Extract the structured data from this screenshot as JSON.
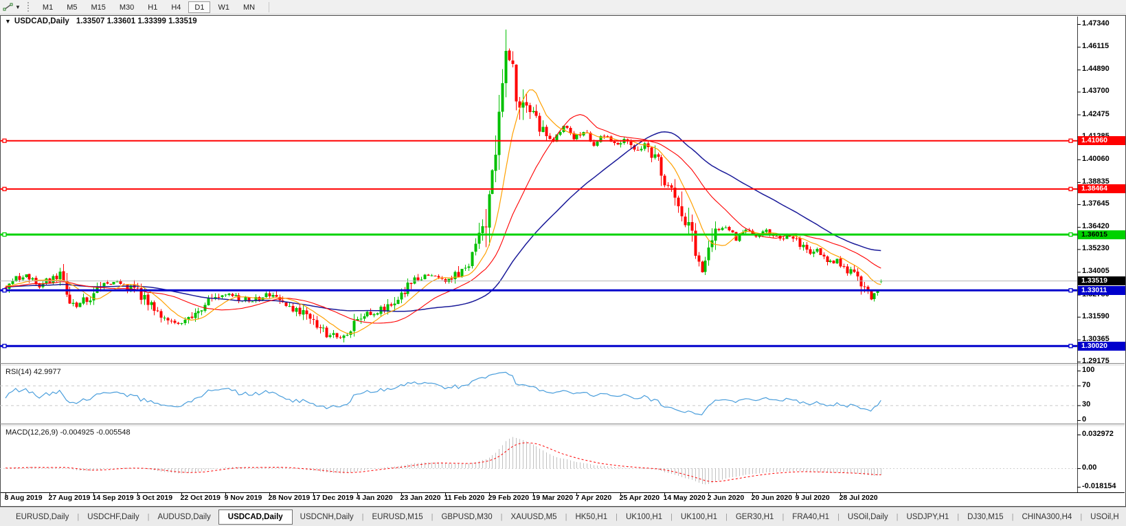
{
  "toolbar": {
    "timeframes": [
      "M1",
      "M5",
      "M15",
      "M30",
      "H1",
      "H4",
      "D1",
      "W1",
      "MN"
    ],
    "active_timeframe": "D1",
    "dropdown_caret": "▼"
  },
  "title": {
    "collapse_arrow": "▼",
    "symbol_period": "USDCAD,Daily",
    "ohlc": "1.33507 1.33601 1.33399 1.33519"
  },
  "price_axis": {
    "top": 1.4734,
    "bottom": 1.29175,
    "labels": [
      "1.47340",
      "1.46115",
      "1.44890",
      "1.43700",
      "1.42475",
      "1.41285",
      "1.40060",
      "1.38835",
      "1.37645",
      "1.36420",
      "1.35230",
      "1.34005",
      "1.32780",
      "1.31590",
      "1.30365",
      "1.29175"
    ]
  },
  "price_markers": [
    {
      "name": "resistance-1",
      "value": "1.41060",
      "price": 1.4106,
      "color": "#ff0000",
      "text_color": "#ffffff",
      "line_width": 2
    },
    {
      "name": "resistance-2",
      "value": "1.38464",
      "price": 1.38464,
      "color": "#ff0000",
      "text_color": "#ffffff",
      "line_width": 2
    },
    {
      "name": "pivot-green",
      "value": "1.36015",
      "price": 1.36015,
      "color": "#00d200",
      "text_color": "#000000",
      "line_width": 3
    },
    {
      "name": "current-price",
      "value": "1.33519",
      "price": 1.33519,
      "color": "#000000",
      "text_color": "#ffffff",
      "line_width": 1,
      "line_color": "#b2b2b2"
    },
    {
      "name": "support-1",
      "value": "1.33011",
      "price": 1.33011,
      "color": "#0000cc",
      "text_color": "#ffffff",
      "line_width": 3
    },
    {
      "name": "support-2",
      "value": "1.30020",
      "price": 1.3002,
      "color": "#0000cc",
      "text_color": "#ffffff",
      "line_width": 3
    }
  ],
  "indicators": {
    "rsi": {
      "label": "RSI(14) 42.9977",
      "scale": [
        "100",
        "70",
        "30",
        "0"
      ],
      "upper": 70,
      "lower": 30,
      "line_color": "#4a9edc",
      "level_color": "#c8c8c8"
    },
    "macd": {
      "label": "MACD(12,26,9) -0.004925 -0.005548",
      "scale": [
        "0.032972",
        "0.00",
        "-0.018154"
      ],
      "max": 0.032972,
      "min": -0.018154,
      "hist_color": "#c0c0c0",
      "signal_color": "#ff0000"
    }
  },
  "date_axis": [
    "8 Aug 2019",
    "27 Aug 2019",
    "14 Sep 2019",
    "3 Oct 2019",
    "22 Oct 2019",
    "9 Nov 2019",
    "28 Nov 2019",
    "17 Dec 2019",
    "4 Jan 2020",
    "23 Jan 2020",
    "11 Feb 2020",
    "29 Feb 2020",
    "19 Mar 2020",
    "7 Apr 2020",
    "25 Apr 2020",
    "14 May 2020",
    "2 Jun 2020",
    "20 Jun 2020",
    "9 Jul 2020",
    "28 Jul 2020"
  ],
  "tabs": {
    "items": [
      "EURUSD,Daily",
      "USDCHF,Daily",
      "AUDUSD,Daily",
      "USDCAD,Daily",
      "USDCNH,Daily",
      "EURUSD,M15",
      "GBPUSD,M30",
      "XAUUSD,M5",
      "HK50,H1",
      "UK100,H1",
      "UK100,H1",
      "GER30,H1",
      "FRA40,H1",
      "USOil,Daily",
      "USDJPY,H1",
      "DJ30,M15",
      "CHINA300,H4",
      "USOil,H"
    ],
    "active_index": 3,
    "separator": "|",
    "scroll_left": "◄",
    "scroll_right": "►"
  },
  "colors": {
    "bull": "#00c000",
    "bear": "#ff0000",
    "ma_fast": "#ffa000",
    "ma_mid": "#ff0000",
    "ma_slow": "#1a1a99",
    "window_bg": "#ffffff",
    "toolbar_bg": "#f0f0f0"
  },
  "chart_data": {
    "type": "candlestick",
    "symbol": "USDCAD",
    "period": "Daily",
    "count": 260,
    "last": {
      "open": 1.33507,
      "high": 1.33601,
      "low": 1.33399,
      "close": 1.33519
    },
    "visible_high": 1.4734,
    "visible_low": 1.29175,
    "close_keyframes": [
      [
        0,
        1.332
      ],
      [
        5,
        1.3384
      ],
      [
        10,
        1.3329
      ],
      [
        16,
        1.3392
      ],
      [
        20,
        1.321
      ],
      [
        24,
        1.3254
      ],
      [
        29,
        1.3354
      ],
      [
        34,
        1.3329
      ],
      [
        39,
        1.3292
      ],
      [
        43,
        1.3218
      ],
      [
        48,
        1.3132
      ],
      [
        52,
        1.3117
      ],
      [
        57,
        1.3206
      ],
      [
        61,
        1.3254
      ],
      [
        66,
        1.328
      ],
      [
        72,
        1.3243
      ],
      [
        77,
        1.3273
      ],
      [
        82,
        1.3236
      ],
      [
        87,
        1.3191
      ],
      [
        91,
        1.3125
      ],
      [
        96,
        1.3058
      ],
      [
        100,
        1.3051
      ],
      [
        102,
        1.3095
      ],
      [
        105,
        1.3154
      ],
      [
        109,
        1.318
      ],
      [
        113,
        1.3206
      ],
      [
        117,
        1.3273
      ],
      [
        121,
        1.3365
      ],
      [
        125,
        1.3376
      ],
      [
        130,
        1.3354
      ],
      [
        134,
        1.3384
      ],
      [
        138,
        1.3476
      ],
      [
        141,
        1.3606
      ],
      [
        143,
        1.3754
      ],
      [
        145,
        1.4013
      ],
      [
        146,
        1.4309
      ],
      [
        148,
        1.4568
      ],
      [
        150,
        1.4512
      ],
      [
        151,
        1.4364
      ],
      [
        153,
        1.429
      ],
      [
        156,
        1.4235
      ],
      [
        159,
        1.4161
      ],
      [
        162,
        1.4105
      ],
      [
        165,
        1.4179
      ],
      [
        168,
        1.4123
      ],
      [
        171,
        1.4161
      ],
      [
        174,
        1.4094
      ],
      [
        177,
        1.4138
      ],
      [
        180,
        1.4079
      ],
      [
        183,
        1.4116
      ],
      [
        186,
        1.4042
      ],
      [
        189,
        1.4079
      ],
      [
        193,
        1.3983
      ],
      [
        195,
        1.3894
      ],
      [
        198,
        1.3798
      ],
      [
        200,
        1.3746
      ],
      [
        202,
        1.3635
      ],
      [
        204,
        1.3502
      ],
      [
        206,
        1.3398
      ],
      [
        208,
        1.3561
      ],
      [
        210,
        1.3613
      ],
      [
        213,
        1.3635
      ],
      [
        216,
        1.358
      ],
      [
        219,
        1.3635
      ],
      [
        222,
        1.3598
      ],
      [
        225,
        1.3616
      ],
      [
        228,
        1.358
      ],
      [
        231,
        1.3598
      ],
      [
        234,
        1.3561
      ],
      [
        237,
        1.3524
      ],
      [
        240,
        1.3505
      ],
      [
        243,
        1.3468
      ],
      [
        246,
        1.345
      ],
      [
        249,
        1.3413
      ],
      [
        252,
        1.3372
      ],
      [
        255,
        1.3317
      ],
      [
        256,
        1.3265
      ],
      [
        258,
        1.3302
      ],
      [
        259,
        1.3352
      ]
    ]
  }
}
